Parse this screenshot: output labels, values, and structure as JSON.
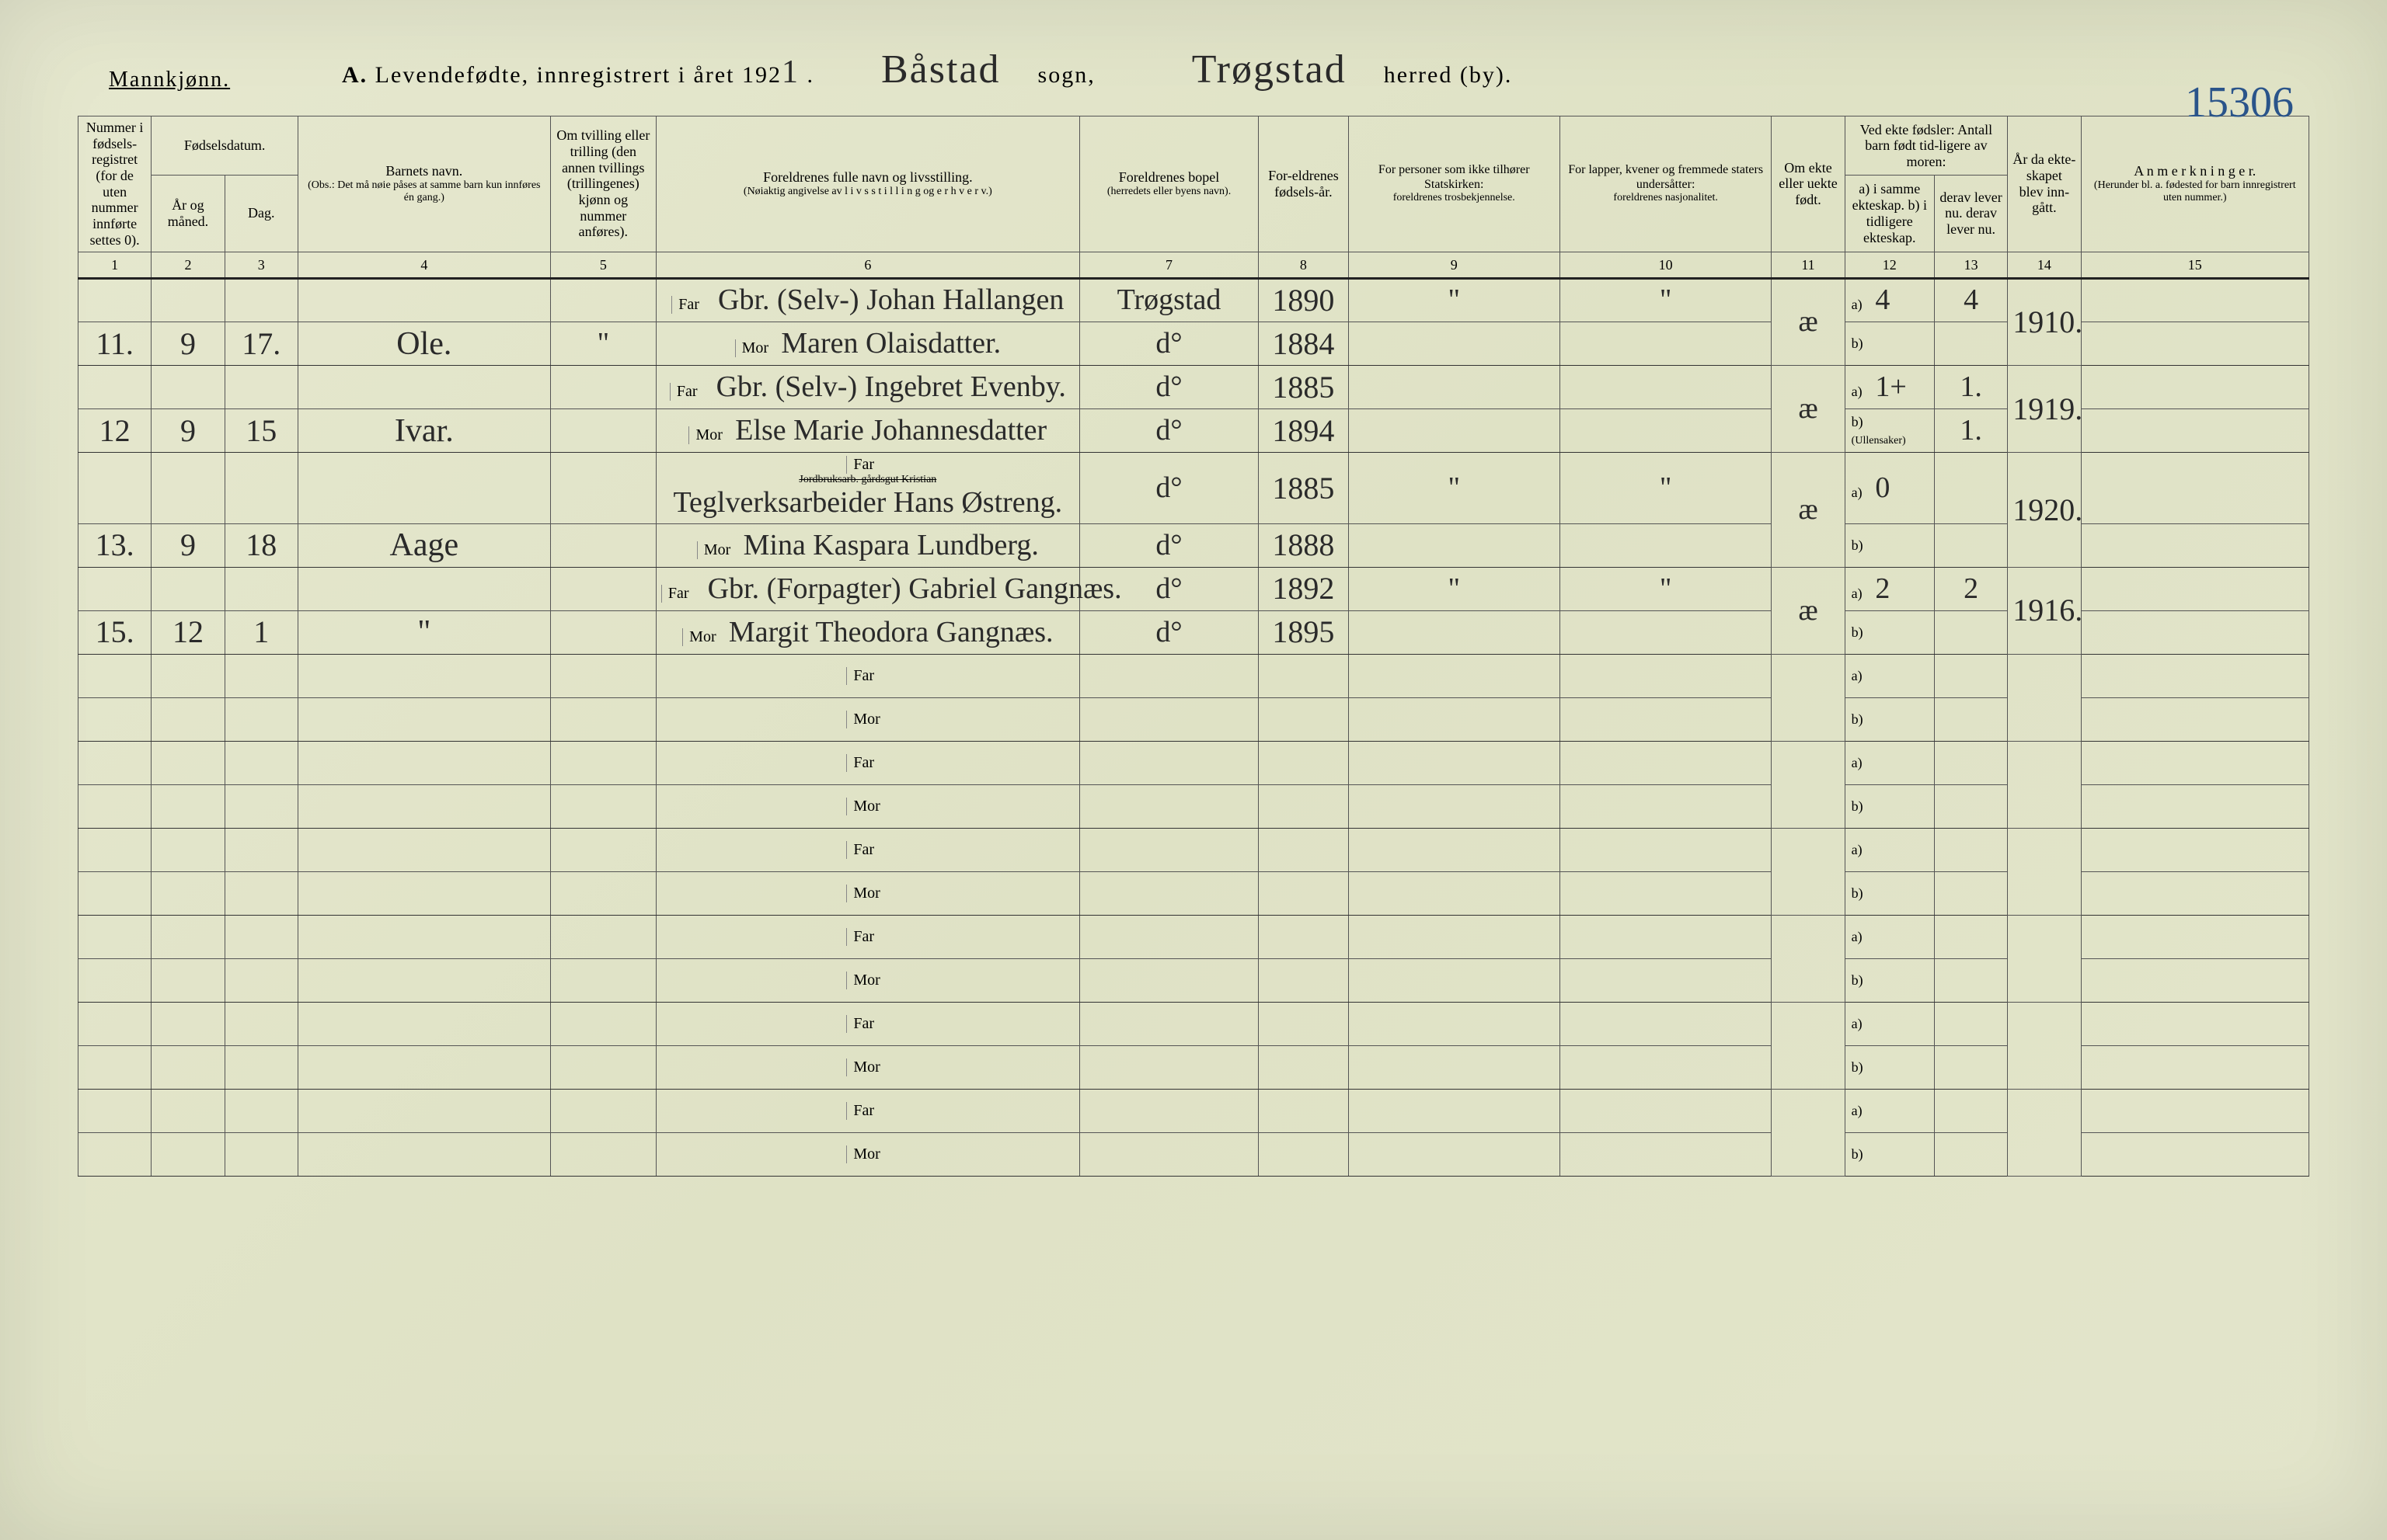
{
  "header": {
    "gender_label": "Mannkjønn.",
    "title_prefix": "A.",
    "title_main": "Levendefødte, innregistrert i året 192",
    "year_suffix_hw": "1",
    "sogn_hw": "Båstad",
    "sogn_label": "sogn,",
    "herred_hw": "Trøgstad",
    "herred_label": "herred (by).",
    "page_number_hw": "15306"
  },
  "columns": {
    "c1": "Nummer i fødsels-registret (for de uten nummer innførte settes 0).",
    "c2_group": "Fødselsdatum.",
    "c2": "År og måned.",
    "c3": "Dag.",
    "c4": "Barnets navn.",
    "c4_note": "(Obs.: Det må nøie påses at samme barn kun innføres én gang.)",
    "c5": "Om tvilling eller trilling (den annen tvillings (trillingenes) kjønn og nummer anføres).",
    "c6": "Foreldrenes fulle navn og livsstilling.",
    "c6_note": "(Nøiaktig angivelse av  l i v s s t i l l i n g  og  e r h v e r v.)",
    "c7": "Foreldrenes bopel",
    "c7_note": "(herredets eller byens navn).",
    "c8": "For-eldrenes fødsels-år.",
    "c9": "For personer som ikke tilhører Statskirken:",
    "c9_note": "foreldrenes trosbekjennelse.",
    "c10": "For lapper, kvener og fremmede staters undersåtter:",
    "c10_note": "foreldrenes nasjonalitet.",
    "c11": "Om ekte eller uekte født.",
    "c12_13_group": "Ved ekte fødsler: Antall barn født tid-ligere av moren:",
    "c12": "a) i samme ekteskap. b) i tidligere ekteskap.",
    "c13": "derav lever nu. derav lever nu.",
    "c14": "År da ekte-skapet blev inn-gått.",
    "c15": "A n m e r k n i n g e r.",
    "c15_note": "(Herunder bl. a. fødested for barn innregistrert uten nummer.)"
  },
  "labels": {
    "far": "Far",
    "mor": "Mor",
    "a": "a)",
    "b": "b)"
  },
  "colnums": [
    "1",
    "2",
    "3",
    "4",
    "5",
    "6",
    "7",
    "8",
    "9",
    "10",
    "11",
    "12",
    "13",
    "14",
    "15"
  ],
  "rows": [
    {
      "num": "11.",
      "month": "9",
      "day": "17.",
      "name": "Ole.",
      "twin": "\"",
      "far": "Gbr. (Selv-) Johan Hallangen",
      "mor": "Maren Olaisdatter.",
      "bopel_far": "Trøgstad",
      "bopel_mor": "d°",
      "year_far": "1890",
      "year_mor": "1884",
      "c9": "\"",
      "c10": "\"",
      "ekte": "æ",
      "a_val": "4",
      "b_val": "",
      "lever_a": "4",
      "lever_b": "",
      "ekteskap_aar": "1910."
    },
    {
      "num": "12",
      "month": "9",
      "day": "15",
      "name": "Ivar.",
      "twin": "",
      "far": "Gbr. (Selv-) Ingebret Evenby.",
      "mor": "Else Marie Johannesdatter",
      "bopel_far": "d°",
      "bopel_mor": "d°",
      "year_far": "1885",
      "year_mor": "1894",
      "c9": "",
      "c10": "",
      "ekte": "æ",
      "a_val": "1+",
      "b_val": "(Ullensaker)",
      "lever_a": "1.",
      "lever_b": "1.",
      "ekteskap_aar": "1919."
    },
    {
      "num": "13.",
      "month": "9",
      "day": "18",
      "name": "Aage",
      "twin": "",
      "far_prefix": "Jordbruksarb. gårdsgut Kristian",
      "far": "Teglverksarbeider Hans Østreng.",
      "mor": "Mina Kaspara Lundberg.",
      "bopel_far": "d°",
      "bopel_mor": "d°",
      "year_far": "1885",
      "year_mor": "1888",
      "c9": "\"",
      "c10": "\"",
      "ekte": "æ",
      "a_val": "0",
      "b_val": "",
      "lever_a": "",
      "lever_b": "",
      "ekteskap_aar": "1920."
    },
    {
      "num": "15.",
      "month": "12",
      "day": "1",
      "name": "\"",
      "twin": "",
      "far": "Gbr. (Forpagter) Gabriel Gangnæs.",
      "mor": "Margit Theodora Gangnæs.",
      "bopel_far": "d°",
      "bopel_mor": "d°",
      "year_far": "1892",
      "year_mor": "1895",
      "c9": "\"",
      "c10": "\"",
      "ekte": "æ",
      "a_val": "2",
      "b_val": "",
      "lever_a": "2",
      "lever_b": "",
      "ekteskap_aar": "1916."
    }
  ],
  "empty_rows": 6,
  "colors": {
    "paper": "#e4e6cc",
    "ink": "#2a2a2a",
    "rule": "#555555"
  }
}
